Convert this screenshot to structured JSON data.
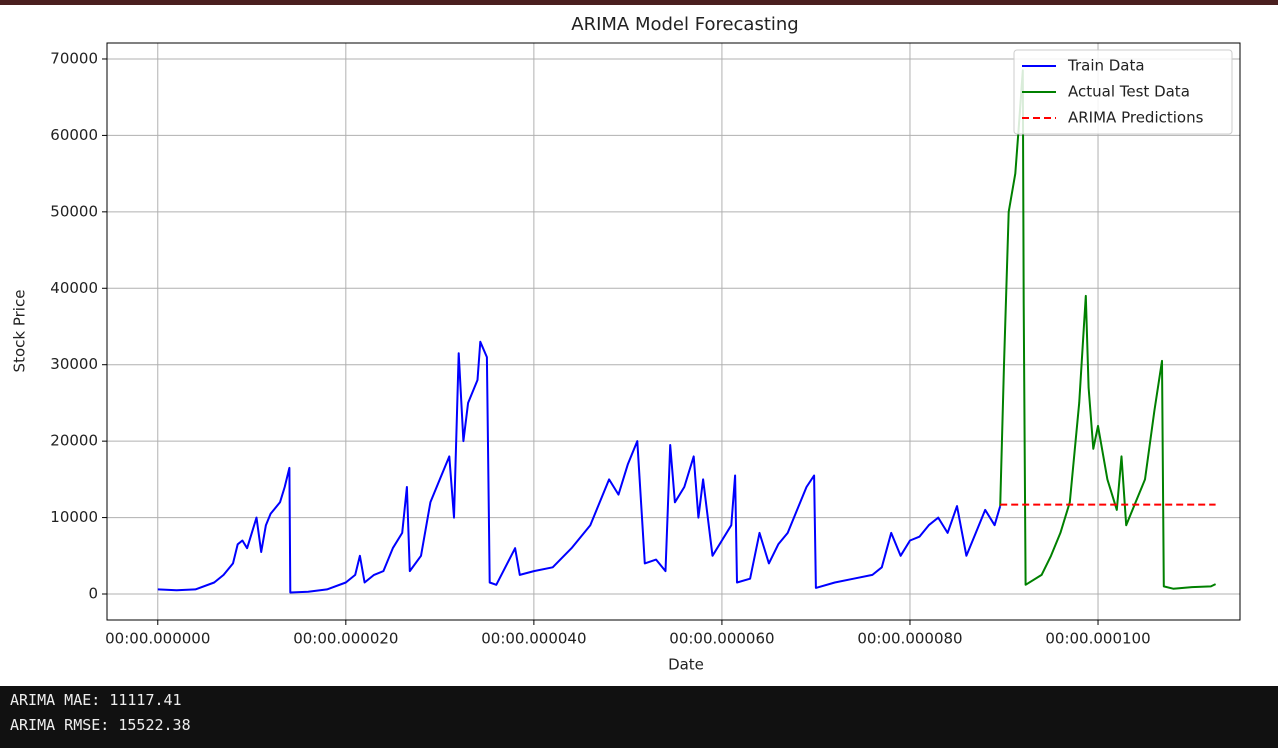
{
  "chart_data": {
    "type": "line",
    "title": "ARIMA Model Forecasting",
    "x_label": "Date",
    "y_label": "Stock Price",
    "xlim": [
      -5.4,
      115.1
    ],
    "ylim": [
      -3400,
      72090
    ],
    "xticks": [
      {
        "value": 0,
        "label": "00:00.000000"
      },
      {
        "value": 20,
        "label": "00:00.000020"
      },
      {
        "value": 40,
        "label": "00:00.000040"
      },
      {
        "value": 60,
        "label": "00:00.000060"
      },
      {
        "value": 80,
        "label": "00:00.000080"
      },
      {
        "value": 100,
        "label": "00:00.000100"
      }
    ],
    "yticks": [
      0,
      10000,
      20000,
      30000,
      40000,
      50000,
      60000,
      70000
    ],
    "grid": true,
    "legend": "upper right",
    "series": [
      {
        "name": "Train Data",
        "color": "#0000ff",
        "linestyle": "-",
        "x": [
          0,
          2,
          4,
          6,
          7,
          8,
          8.5,
          9,
          9.5,
          10,
          10.5,
          11,
          11.5,
          12,
          13,
          13.5,
          14,
          14.1,
          16,
          18,
          20,
          21,
          21.5,
          22,
          23,
          24,
          25,
          26,
          26.5,
          26.8,
          28,
          29,
          30,
          31,
          31.5,
          32,
          32.5,
          33,
          34,
          34.3,
          35,
          35.3,
          36,
          38,
          38.5,
          40,
          42,
          44,
          46,
          48,
          49,
          50,
          51,
          51.8,
          53,
          54,
          54.5,
          55,
          56,
          57,
          57.5,
          58,
          59,
          60,
          61,
          61.4,
          61.6,
          63,
          64,
          65,
          66,
          67,
          68,
          69,
          69.8,
          70,
          72,
          74,
          76,
          77,
          78,
          79,
          80,
          81,
          82,
          83,
          84,
          85,
          86,
          87,
          88,
          89,
          89.6
        ],
        "values": [
          600,
          500,
          600,
          1500,
          2500,
          4000,
          6500,
          7000,
          6000,
          8000,
          10000,
          5500,
          9000,
          10500,
          12000,
          14000,
          16500,
          200,
          300,
          600,
          1500,
          2500,
          5000,
          1500,
          2500,
          3000,
          6000,
          8000,
          14000,
          3000,
          5000,
          12000,
          15000,
          18000,
          10000,
          31500,
          20000,
          25000,
          28000,
          33000,
          31000,
          1500,
          1200,
          6000,
          2500,
          3000,
          3500,
          6000,
          9000,
          15000,
          13000,
          17000,
          20000,
          4000,
          4500,
          3000,
          19500,
          12000,
          14000,
          18000,
          10000,
          15000,
          5000,
          7000,
          9000,
          15500,
          1500,
          2000,
          8000,
          4000,
          6500,
          8000,
          11000,
          14000,
          15500,
          800,
          1500,
          2000,
          2500,
          3500,
          8000,
          5000,
          7000,
          7500,
          9000,
          10000,
          8000,
          11500,
          5000,
          8000,
          11000,
          9000,
          11500
        ]
      },
      {
        "name": "Actual Test Data",
        "color": "#008000",
        "linestyle": "-",
        "x": [
          89.6,
          90,
          90.5,
          91.2,
          91.6,
          92.0,
          92.1,
          92.3,
          94,
          95,
          96,
          97,
          98,
          98.5,
          98.7,
          99,
          99.5,
          100,
          101,
          102,
          102.5,
          103,
          104,
          105,
          106,
          106.8,
          107,
          108,
          110,
          112,
          112.5
        ],
        "values": [
          11500,
          30000,
          50000,
          55000,
          61500,
          68500,
          38000,
          1200,
          2500,
          5000,
          8000,
          12000,
          25000,
          35000,
          39000,
          27000,
          19000,
          22000,
          15000,
          11000,
          18000,
          9000,
          12000,
          15000,
          24000,
          30500,
          1000,
          700,
          900,
          1000,
          1300
        ]
      },
      {
        "name": "ARIMA Predictions",
        "color": "#ff0000",
        "linestyle": "--",
        "x": [
          89.6,
          112.5
        ],
        "values": [
          11700,
          11700
        ]
      }
    ]
  },
  "output": [
    "ARIMA MAE: 11117.41",
    "ARIMA RMSE: 15522.38"
  ]
}
